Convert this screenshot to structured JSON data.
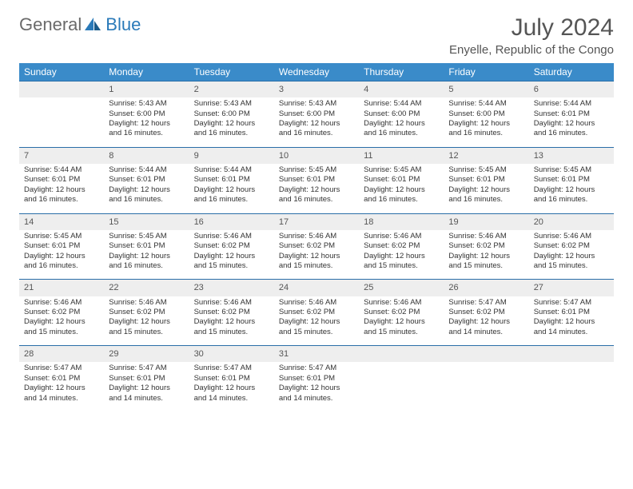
{
  "logo": {
    "word1": "General",
    "word2": "Blue"
  },
  "title": "July 2024",
  "location": "Enyelle, Republic of the Congo",
  "colors": {
    "header_bg": "#3a8bc9",
    "header_border": "#2a6ea8",
    "daynum_bg": "#eeeeee",
    "text": "#333333"
  },
  "weekdays": [
    "Sunday",
    "Monday",
    "Tuesday",
    "Wednesday",
    "Thursday",
    "Friday",
    "Saturday"
  ],
  "weeks": [
    [
      {
        "n": "",
        "d": [
          "",
          "",
          "",
          ""
        ]
      },
      {
        "n": "1",
        "d": [
          "Sunrise: 5:43 AM",
          "Sunset: 6:00 PM",
          "Daylight: 12 hours",
          "and 16 minutes."
        ]
      },
      {
        "n": "2",
        "d": [
          "Sunrise: 5:43 AM",
          "Sunset: 6:00 PM",
          "Daylight: 12 hours",
          "and 16 minutes."
        ]
      },
      {
        "n": "3",
        "d": [
          "Sunrise: 5:43 AM",
          "Sunset: 6:00 PM",
          "Daylight: 12 hours",
          "and 16 minutes."
        ]
      },
      {
        "n": "4",
        "d": [
          "Sunrise: 5:44 AM",
          "Sunset: 6:00 PM",
          "Daylight: 12 hours",
          "and 16 minutes."
        ]
      },
      {
        "n": "5",
        "d": [
          "Sunrise: 5:44 AM",
          "Sunset: 6:00 PM",
          "Daylight: 12 hours",
          "and 16 minutes."
        ]
      },
      {
        "n": "6",
        "d": [
          "Sunrise: 5:44 AM",
          "Sunset: 6:01 PM",
          "Daylight: 12 hours",
          "and 16 minutes."
        ]
      }
    ],
    [
      {
        "n": "7",
        "d": [
          "Sunrise: 5:44 AM",
          "Sunset: 6:01 PM",
          "Daylight: 12 hours",
          "and 16 minutes."
        ]
      },
      {
        "n": "8",
        "d": [
          "Sunrise: 5:44 AM",
          "Sunset: 6:01 PM",
          "Daylight: 12 hours",
          "and 16 minutes."
        ]
      },
      {
        "n": "9",
        "d": [
          "Sunrise: 5:44 AM",
          "Sunset: 6:01 PM",
          "Daylight: 12 hours",
          "and 16 minutes."
        ]
      },
      {
        "n": "10",
        "d": [
          "Sunrise: 5:45 AM",
          "Sunset: 6:01 PM",
          "Daylight: 12 hours",
          "and 16 minutes."
        ]
      },
      {
        "n": "11",
        "d": [
          "Sunrise: 5:45 AM",
          "Sunset: 6:01 PM",
          "Daylight: 12 hours",
          "and 16 minutes."
        ]
      },
      {
        "n": "12",
        "d": [
          "Sunrise: 5:45 AM",
          "Sunset: 6:01 PM",
          "Daylight: 12 hours",
          "and 16 minutes."
        ]
      },
      {
        "n": "13",
        "d": [
          "Sunrise: 5:45 AM",
          "Sunset: 6:01 PM",
          "Daylight: 12 hours",
          "and 16 minutes."
        ]
      }
    ],
    [
      {
        "n": "14",
        "d": [
          "Sunrise: 5:45 AM",
          "Sunset: 6:01 PM",
          "Daylight: 12 hours",
          "and 16 minutes."
        ]
      },
      {
        "n": "15",
        "d": [
          "Sunrise: 5:45 AM",
          "Sunset: 6:01 PM",
          "Daylight: 12 hours",
          "and 16 minutes."
        ]
      },
      {
        "n": "16",
        "d": [
          "Sunrise: 5:46 AM",
          "Sunset: 6:02 PM",
          "Daylight: 12 hours",
          "and 15 minutes."
        ]
      },
      {
        "n": "17",
        "d": [
          "Sunrise: 5:46 AM",
          "Sunset: 6:02 PM",
          "Daylight: 12 hours",
          "and 15 minutes."
        ]
      },
      {
        "n": "18",
        "d": [
          "Sunrise: 5:46 AM",
          "Sunset: 6:02 PM",
          "Daylight: 12 hours",
          "and 15 minutes."
        ]
      },
      {
        "n": "19",
        "d": [
          "Sunrise: 5:46 AM",
          "Sunset: 6:02 PM",
          "Daylight: 12 hours",
          "and 15 minutes."
        ]
      },
      {
        "n": "20",
        "d": [
          "Sunrise: 5:46 AM",
          "Sunset: 6:02 PM",
          "Daylight: 12 hours",
          "and 15 minutes."
        ]
      }
    ],
    [
      {
        "n": "21",
        "d": [
          "Sunrise: 5:46 AM",
          "Sunset: 6:02 PM",
          "Daylight: 12 hours",
          "and 15 minutes."
        ]
      },
      {
        "n": "22",
        "d": [
          "Sunrise: 5:46 AM",
          "Sunset: 6:02 PM",
          "Daylight: 12 hours",
          "and 15 minutes."
        ]
      },
      {
        "n": "23",
        "d": [
          "Sunrise: 5:46 AM",
          "Sunset: 6:02 PM",
          "Daylight: 12 hours",
          "and 15 minutes."
        ]
      },
      {
        "n": "24",
        "d": [
          "Sunrise: 5:46 AM",
          "Sunset: 6:02 PM",
          "Daylight: 12 hours",
          "and 15 minutes."
        ]
      },
      {
        "n": "25",
        "d": [
          "Sunrise: 5:46 AM",
          "Sunset: 6:02 PM",
          "Daylight: 12 hours",
          "and 15 minutes."
        ]
      },
      {
        "n": "26",
        "d": [
          "Sunrise: 5:47 AM",
          "Sunset: 6:02 PM",
          "Daylight: 12 hours",
          "and 14 minutes."
        ]
      },
      {
        "n": "27",
        "d": [
          "Sunrise: 5:47 AM",
          "Sunset: 6:01 PM",
          "Daylight: 12 hours",
          "and 14 minutes."
        ]
      }
    ],
    [
      {
        "n": "28",
        "d": [
          "Sunrise: 5:47 AM",
          "Sunset: 6:01 PM",
          "Daylight: 12 hours",
          "and 14 minutes."
        ]
      },
      {
        "n": "29",
        "d": [
          "Sunrise: 5:47 AM",
          "Sunset: 6:01 PM",
          "Daylight: 12 hours",
          "and 14 minutes."
        ]
      },
      {
        "n": "30",
        "d": [
          "Sunrise: 5:47 AM",
          "Sunset: 6:01 PM",
          "Daylight: 12 hours",
          "and 14 minutes."
        ]
      },
      {
        "n": "31",
        "d": [
          "Sunrise: 5:47 AM",
          "Sunset: 6:01 PM",
          "Daylight: 12 hours",
          "and 14 minutes."
        ]
      },
      {
        "n": "",
        "d": [
          "",
          "",
          "",
          ""
        ]
      },
      {
        "n": "",
        "d": [
          "",
          "",
          "",
          ""
        ]
      },
      {
        "n": "",
        "d": [
          "",
          "",
          "",
          ""
        ]
      }
    ]
  ]
}
